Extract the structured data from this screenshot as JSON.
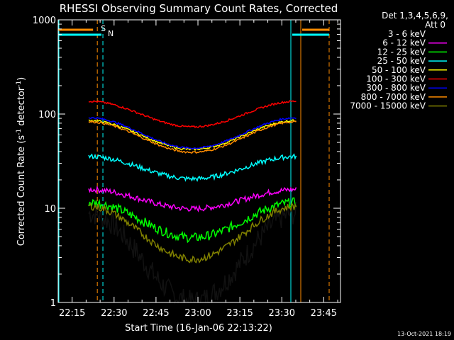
{
  "chart_data": {
    "type": "line",
    "title": "RHESSI Observing Summary Count Rates, Corrected",
    "xlabel": "Start Time (16-Jan-06 22:13:22)",
    "ylabel_main": "Corrected Count Rate (s",
    "ylabel_sup1": "-1",
    "ylabel_mid": " detector",
    "ylabel_sup2": "-1",
    "ylabel_end": ")",
    "yscale": "log",
    "xlim": [
      "22:10",
      "23:51"
    ],
    "ylim": [
      1,
      1000
    ],
    "x_ticks": [
      "22:15",
      "22:30",
      "22:45",
      "23:00",
      "23:15",
      "23:30",
      "23:45"
    ],
    "y_ticks": [
      "1",
      "10",
      "100",
      "1000"
    ],
    "legend_header": [
      "Det 1,3,4,5,6,9,",
      "Att 0"
    ],
    "legend_placement": "right",
    "timestamp": "13-Oct-2021 18:19",
    "markers": [
      {
        "label": "S",
        "color": "#ff8c00",
        "time": "22:24"
      },
      {
        "label": "N",
        "color": "#00ffff",
        "time": "22:26"
      }
    ],
    "series": [
      {
        "name": "3 - 6 keV",
        "color": "#000000"
      },
      {
        "name": "6 - 12 keV",
        "color": "#ff00ff"
      },
      {
        "name": "12 - 25 keV",
        "color": "#00ff00"
      },
      {
        "name": "25 - 50 keV",
        "color": "#00ffff"
      },
      {
        "name": "50 - 100 keV",
        "color": "#ffff00"
      },
      {
        "name": "100 - 300 keV",
        "color": "#ff0000"
      },
      {
        "name": "300 - 800 keV",
        "color": "#0000ff"
      },
      {
        "name": "800 - 7000 keV",
        "color": "#ff8c00"
      },
      {
        "name": "7000 - 15000 keV",
        "color": "#808000"
      }
    ]
  }
}
